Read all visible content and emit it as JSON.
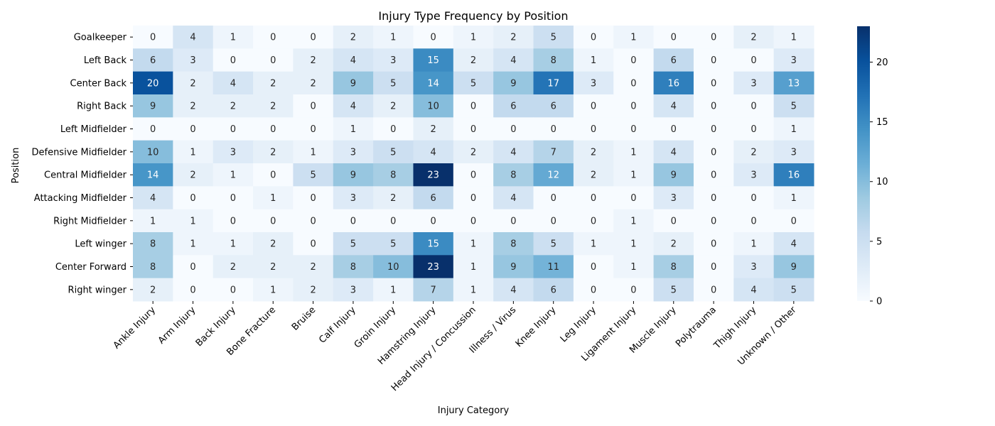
{
  "chart_data": {
    "type": "heatmap",
    "title": "Injury Type Frequency by Position",
    "xlabel": "Injury Category",
    "ylabel": "Position",
    "colormap": "Blues",
    "colorbar": {
      "min": 0,
      "max": 23,
      "ticks": [
        0,
        5,
        10,
        15,
        20
      ]
    },
    "x": [
      "Ankle Injury",
      "Arm Injury",
      "Back Injury",
      "Bone Fracture",
      "Bruise",
      "Calf Injury",
      "Groin Injury",
      "Hamstring Injury",
      "Head Injury / Concussion",
      "Illness / Virus",
      "Knee Injury",
      "Leg Injury",
      "Ligament Injury",
      "Muscle Injury",
      "Polytrauma",
      "Thigh Injury",
      "Unknown / Other"
    ],
    "y": [
      "Goalkeeper",
      "Left Back",
      "Center Back",
      "Right Back",
      "Left Midfielder",
      "Defensive Midfielder",
      "Central Midfielder",
      "Attacking Midfielder",
      "Right Midfielder",
      "Left winger",
      "Center Forward",
      "Right winger"
    ],
    "values": [
      [
        0,
        4,
        1,
        0,
        0,
        2,
        1,
        0,
        1,
        2,
        5,
        0,
        1,
        0,
        0,
        2,
        1
      ],
      [
        6,
        3,
        0,
        0,
        2,
        4,
        3,
        15,
        2,
        4,
        8,
        1,
        0,
        6,
        0,
        0,
        3
      ],
      [
        20,
        2,
        4,
        2,
        2,
        9,
        5,
        14,
        5,
        9,
        17,
        3,
        0,
        16,
        0,
        3,
        13
      ],
      [
        9,
        2,
        2,
        2,
        0,
        4,
        2,
        10,
        0,
        6,
        6,
        0,
        0,
        4,
        0,
        0,
        5
      ],
      [
        0,
        0,
        0,
        0,
        0,
        1,
        0,
        2,
        0,
        0,
        0,
        0,
        0,
        0,
        0,
        0,
        1
      ],
      [
        10,
        1,
        3,
        2,
        1,
        3,
        5,
        4,
        2,
        4,
        7,
        2,
        1,
        4,
        0,
        2,
        3
      ],
      [
        14,
        2,
        1,
        0,
        5,
        9,
        8,
        23,
        0,
        8,
        12,
        2,
        1,
        9,
        0,
        3,
        16
      ],
      [
        4,
        0,
        0,
        1,
        0,
        3,
        2,
        6,
        0,
        4,
        0,
        0,
        0,
        3,
        0,
        0,
        1
      ],
      [
        1,
        1,
        0,
        0,
        0,
        0,
        0,
        0,
        0,
        0,
        0,
        0,
        1,
        0,
        0,
        0,
        0
      ],
      [
        8,
        1,
        1,
        2,
        0,
        5,
        5,
        15,
        1,
        8,
        5,
        1,
        1,
        2,
        0,
        1,
        4
      ],
      [
        8,
        0,
        2,
        2,
        2,
        8,
        10,
        23,
        1,
        9,
        11,
        0,
        1,
        8,
        0,
        3,
        9
      ],
      [
        2,
        0,
        0,
        1,
        2,
        3,
        1,
        7,
        1,
        4,
        6,
        0,
        0,
        5,
        0,
        4,
        5
      ]
    ]
  }
}
